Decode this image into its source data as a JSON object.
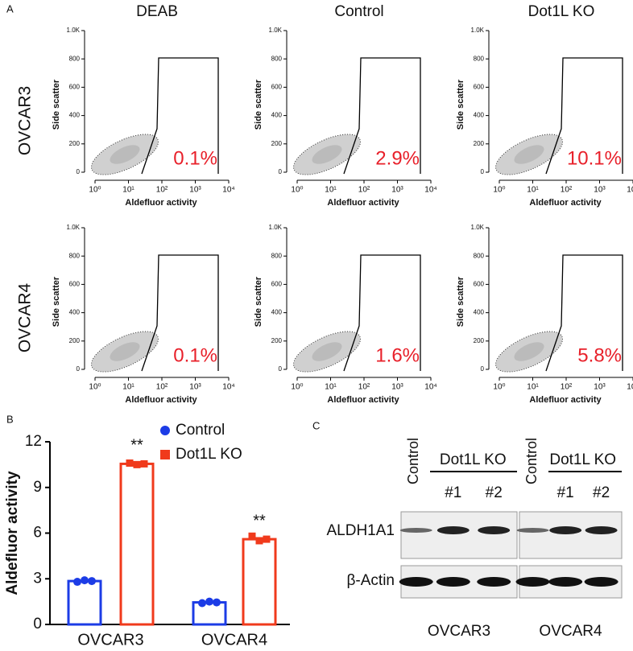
{
  "panel_labels": [
    "A",
    "B",
    "C"
  ],
  "flow": {
    "column_titles": [
      "DEAB",
      "Control",
      "Dot1L KO"
    ],
    "row_labels": [
      "OVCAR3",
      "OVCAR4"
    ],
    "x_label": "Aldefluor activity",
    "y_label": "Side scatter",
    "xticks": [
      {
        "value": 0,
        "label": "10⁰"
      },
      {
        "value": 1,
        "label": "10¹"
      },
      {
        "value": 2,
        "label": "10²"
      },
      {
        "value": 3,
        "label": "10³"
      },
      {
        "value": 4,
        "label": "10⁴"
      }
    ],
    "ylim": [
      0,
      1000
    ],
    "yticks": [
      0,
      200,
      400,
      600,
      800,
      {
        "value": 1000,
        "label": "1.0K"
      }
    ],
    "gate_percent": [
      [
        "0.1%",
        "2.9%",
        "10.1%"
      ],
      [
        "0.1%",
        "1.6%",
        "5.8%"
      ]
    ]
  },
  "chart_data": {
    "type": "bar",
    "y_label": "Aldefluor activity",
    "categories": [
      "OVCAR3",
      "OVCAR4"
    ],
    "ylim": [
      0,
      12
    ],
    "yticks": [
      0,
      3,
      6,
      9,
      12
    ],
    "series": [
      {
        "name": "Control",
        "color": "#1c3ce6",
        "values": [
          2.85,
          1.45
        ],
        "points": [
          [
            2.8,
            2.9,
            2.85
          ],
          [
            1.4,
            1.5,
            1.45
          ]
        ]
      },
      {
        "name": "Dot1L KO",
        "color": "#f03a1c",
        "values": [
          10.55,
          5.6
        ],
        "points": [
          [
            10.6,
            10.5,
            10.55
          ],
          [
            5.8,
            5.5,
            5.6
          ]
        ]
      }
    ],
    "annotations": [
      "**",
      "**"
    ]
  },
  "blot": {
    "lanes": [
      "Control",
      "Dot1L KO"
    ],
    "clones": [
      "#1",
      "#2"
    ],
    "rows": [
      "ALDH1A1",
      "β-Actin"
    ],
    "cell_lines": [
      "OVCAR3",
      "OVCAR4"
    ]
  }
}
